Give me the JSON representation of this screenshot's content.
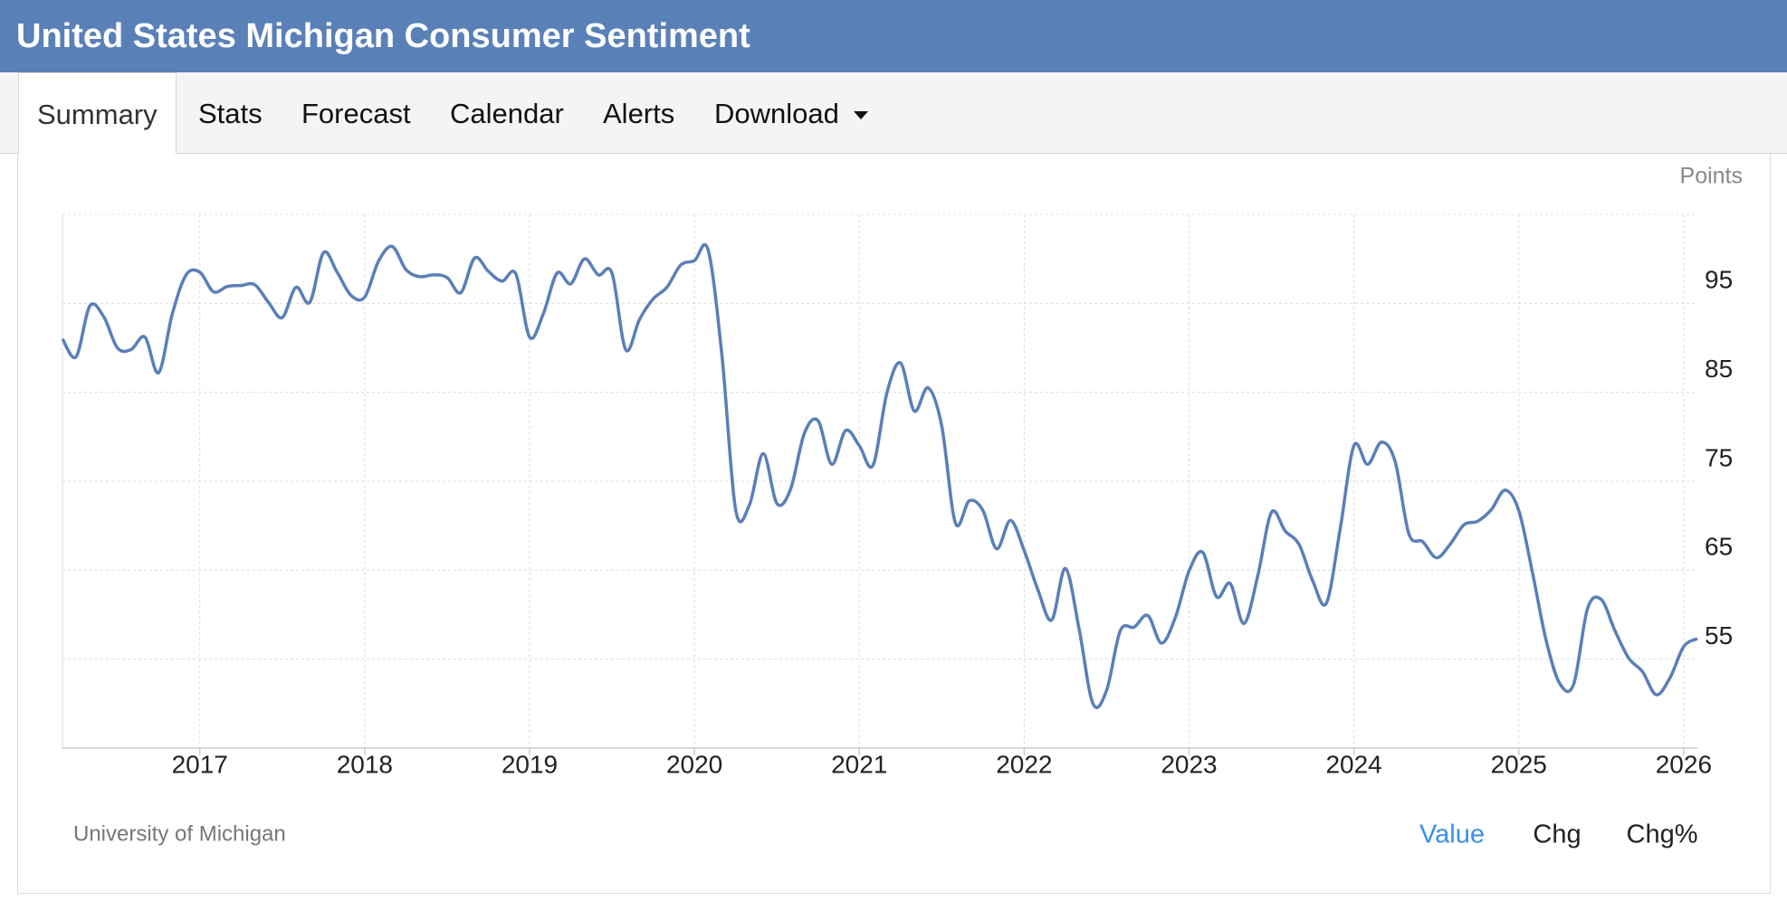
{
  "header": {
    "title": "United States Michigan Consumer Sentiment"
  },
  "tabs": [
    "Summary",
    "Stats",
    "Forecast",
    "Calendar",
    "Alerts",
    "Download"
  ],
  "chart_data": {
    "type": "line",
    "unit_label": "Points",
    "source": "University of Michigan",
    "view_options": [
      "Value",
      "Chg",
      "Chg%"
    ],
    "xlim": [
      2016.167,
      2026.083
    ],
    "xticks": [
      2017,
      2018,
      2019,
      2020,
      2021,
      2022,
      2023,
      2024,
      2025,
      2026
    ],
    "ylim": [
      45,
      105
    ],
    "yticks": [
      55,
      65,
      75,
      85,
      95
    ],
    "grid": true,
    "x": [
      2016.167,
      2016.25,
      2016.333,
      2016.417,
      2016.5,
      2016.583,
      2016.667,
      2016.75,
      2016.833,
      2016.917,
      2017.0,
      2017.083,
      2017.167,
      2017.25,
      2017.333,
      2017.417,
      2017.5,
      2017.583,
      2017.667,
      2017.75,
      2017.833,
      2017.917,
      2018.0,
      2018.083,
      2018.167,
      2018.25,
      2018.333,
      2018.417,
      2018.5,
      2018.583,
      2018.667,
      2018.75,
      2018.833,
      2018.917,
      2019.0,
      2019.083,
      2019.167,
      2019.25,
      2019.333,
      2019.417,
      2019.5,
      2019.583,
      2019.667,
      2019.75,
      2019.833,
      2019.917,
      2020.0,
      2020.083,
      2020.167,
      2020.25,
      2020.333,
      2020.417,
      2020.5,
      2020.583,
      2020.667,
      2020.75,
      2020.833,
      2020.917,
      2021.0,
      2021.083,
      2021.167,
      2021.25,
      2021.333,
      2021.417,
      2021.5,
      2021.583,
      2021.667,
      2021.75,
      2021.833,
      2021.917,
      2022.0,
      2022.083,
      2022.167,
      2022.25,
      2022.333,
      2022.417,
      2022.5,
      2022.583,
      2022.667,
      2022.75,
      2022.833,
      2022.917,
      2023.0,
      2023.083,
      2023.167,
      2023.25,
      2023.333,
      2023.417,
      2023.5,
      2023.583,
      2023.667,
      2023.75,
      2023.833,
      2023.917,
      2024.0,
      2024.083,
      2024.167,
      2024.25,
      2024.333,
      2024.417,
      2024.5,
      2024.583,
      2024.667,
      2024.75,
      2024.833,
      2024.917,
      2025.0,
      2025.083,
      2025.167,
      2025.25,
      2025.333,
      2025.417,
      2025.5,
      2025.583,
      2025.667,
      2025.75,
      2025.833,
      2025.917,
      2026.0,
      2026.083
    ],
    "series": [
      {
        "name": "Value",
        "color": "#5a7fb8",
        "values": [
          91.0,
          89.0,
          94.7,
          93.5,
          90.0,
          89.8,
          91.2,
          87.2,
          93.8,
          98.2,
          98.5,
          96.3,
          96.9,
          97.0,
          97.1,
          95.1,
          93.4,
          96.8,
          95.1,
          100.7,
          98.5,
          95.9,
          95.7,
          99.7,
          101.4,
          98.8,
          98.0,
          98.2,
          97.9,
          96.2,
          100.1,
          98.6,
          97.5,
          98.3,
          91.2,
          93.8,
          98.4,
          97.2,
          100.0,
          98.2,
          98.4,
          89.8,
          93.2,
          95.5,
          96.8,
          99.3,
          99.8,
          101.0,
          89.1,
          71.8,
          72.3,
          78.1,
          72.5,
          74.1,
          80.4,
          81.8,
          76.9,
          80.7,
          79.0,
          76.8,
          84.9,
          88.3,
          82.9,
          85.5,
          81.2,
          70.3,
          72.8,
          71.7,
          67.4,
          70.6,
          67.2,
          62.8,
          59.4,
          65.2,
          58.4,
          50.0,
          51.5,
          58.2,
          58.6,
          59.9,
          56.8,
          59.7,
          64.9,
          67.0,
          62.0,
          63.5,
          59.0,
          64.4,
          71.5,
          69.4,
          67.9,
          63.8,
          61.3,
          69.7,
          79.0,
          76.9,
          79.4,
          77.2,
          69.1,
          68.2,
          66.4,
          67.9,
          70.1,
          70.5,
          71.8,
          74.0,
          71.7,
          64.7,
          57.0,
          52.2,
          52.2,
          60.7,
          61.7,
          58.2,
          55.1,
          53.6,
          51.0,
          52.9,
          56.4,
          57.3
        ]
      }
    ]
  }
}
